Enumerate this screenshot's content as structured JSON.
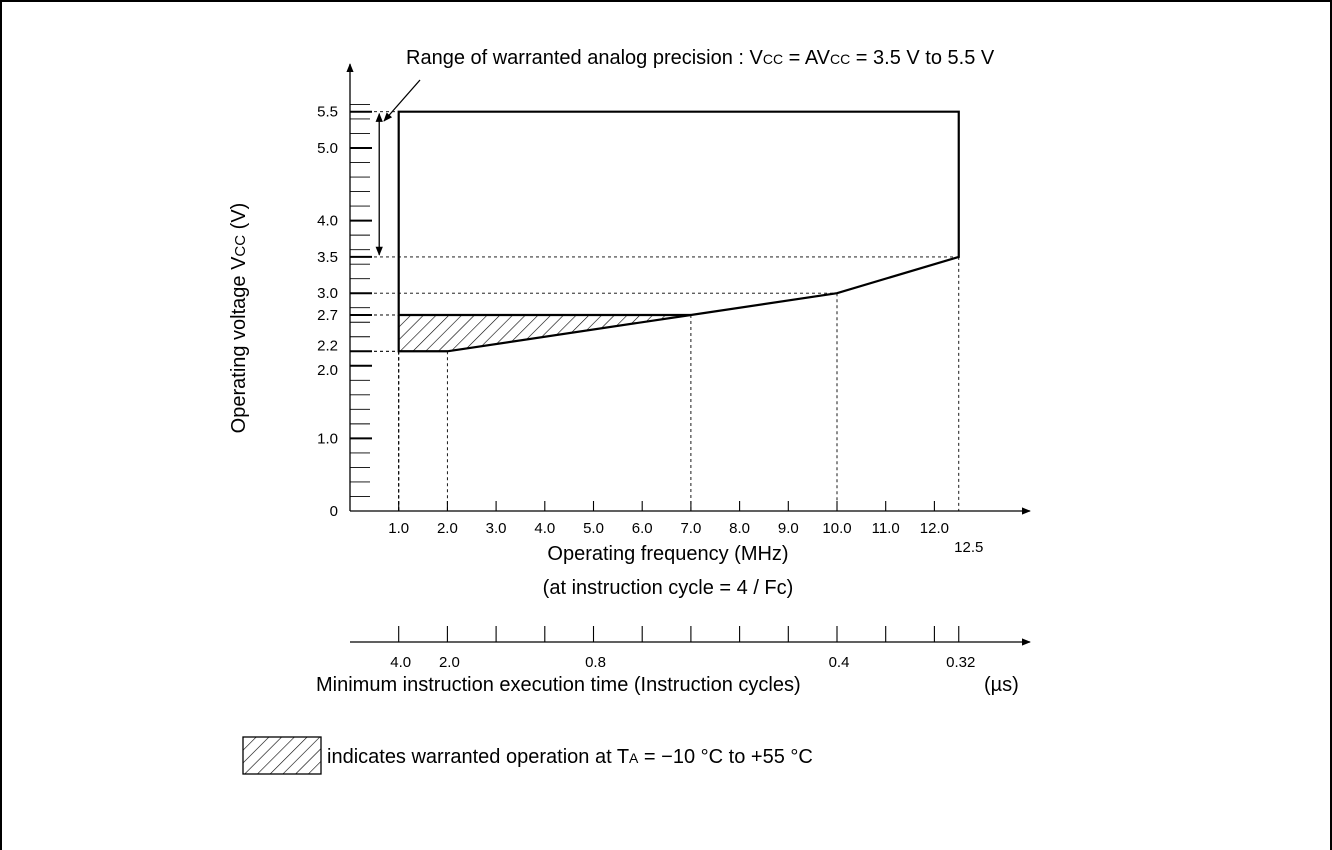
{
  "chart_data": {
    "type": "area",
    "annotation": {
      "prefix": "Range of warranted analog precision : V",
      "sub1": "CC",
      "mid": " = AV",
      "sub2": "CC",
      "suffix": " = 3.5 V to 5.5 V"
    },
    "ylabel": {
      "main": "Operating voltage V",
      "sub": "CC",
      "unit": " (V)"
    },
    "xlabel": {
      "line1": "Operating frequency (MHz)",
      "line2": "(at instruction cycle = 4 / Fc)"
    },
    "x2label": {
      "main": "Minimum instruction execution time (Instruction cycles)",
      "unit": "(µs)"
    },
    "legend": {
      "prefix": "indicates warranted operation at T",
      "sub": "A",
      "suffix": " = −10 °C to +55 °C"
    },
    "xlim": [
      0,
      14.5
    ],
    "ylim": [
      0,
      6.2
    ],
    "y_ticks": [
      {
        "value": 0,
        "label": "0"
      },
      {
        "value": 1.0,
        "label": "1.0"
      },
      {
        "value": 2.0,
        "label": "2.0"
      },
      {
        "value": 2.2,
        "label": "2.2"
      },
      {
        "value": 2.7,
        "label": "2.7"
      },
      {
        "value": 3.0,
        "label": "3.0"
      },
      {
        "value": 3.5,
        "label": "3.5"
      },
      {
        "value": 4.0,
        "label": "4.0"
      },
      {
        "value": 5.0,
        "label": "5.0"
      },
      {
        "value": 5.5,
        "label": "5.5"
      }
    ],
    "y_minor_step": 0.2,
    "x_ticks": [
      {
        "value": 1,
        "label": "1.0"
      },
      {
        "value": 2,
        "label": "2.0"
      },
      {
        "value": 3,
        "label": "3.0"
      },
      {
        "value": 4,
        "label": "4.0"
      },
      {
        "value": 5,
        "label": "5.0"
      },
      {
        "value": 6,
        "label": "6.0"
      },
      {
        "value": 7,
        "label": "7.0"
      },
      {
        "value": 8,
        "label": "8.0"
      },
      {
        "value": 9,
        "label": "9.0"
      },
      {
        "value": 10,
        "label": "10.0"
      },
      {
        "value": 11,
        "label": "11.0"
      },
      {
        "value": 12,
        "label": "12.0"
      },
      {
        "value": 12.5,
        "label": "12.5"
      }
    ],
    "x2_ticks": [
      {
        "freq": 1,
        "label": "4.0"
      },
      {
        "freq": 2,
        "label": "2.0"
      },
      {
        "freq": 3,
        "label": ""
      },
      {
        "freq": 4,
        "label": ""
      },
      {
        "freq": 5,
        "label": "0.8"
      },
      {
        "freq": 6,
        "label": ""
      },
      {
        "freq": 7,
        "label": ""
      },
      {
        "freq": 8,
        "label": ""
      },
      {
        "freq": 9,
        "label": ""
      },
      {
        "freq": 10,
        "label": "0.4"
      },
      {
        "freq": 11,
        "label": ""
      },
      {
        "freq": 12,
        "label": ""
      },
      {
        "freq": 12.5,
        "label": "0.32"
      }
    ],
    "operating_region": [
      {
        "x": 1.0,
        "y": 5.5
      },
      {
        "x": 12.5,
        "y": 5.5
      },
      {
        "x": 12.5,
        "y": 3.5
      },
      {
        "x": 10.0,
        "y": 3.0
      },
      {
        "x": 7.0,
        "y": 2.7
      },
      {
        "x": 1.0,
        "y": 2.7
      }
    ],
    "lower_boundary": [
      {
        "x": 1.0,
        "y": 2.7
      },
      {
        "x": 1.0,
        "y": 2.2
      },
      {
        "x": 2.0,
        "y": 2.2
      },
      {
        "x": 7.0,
        "y": 2.7
      }
    ],
    "hatched_region": [
      {
        "x": 1.0,
        "y": 2.7
      },
      {
        "x": 7.0,
        "y": 2.7
      },
      {
        "x": 2.0,
        "y": 2.2
      },
      {
        "x": 1.0,
        "y": 2.2
      }
    ],
    "reference_lines": [
      {
        "x": 1.0,
        "y": 2.2
      },
      {
        "x": 1.0,
        "y": 2.7
      },
      {
        "x": 2.0,
        "y": 2.2
      },
      {
        "x": 7.0,
        "y": 2.7
      },
      {
        "x": 10.0,
        "y": 3.0
      },
      {
        "x": 12.5,
        "y": 3.5
      },
      {
        "x": 1.0,
        "y": 5.5
      }
    ],
    "analog_range": [
      3.5,
      5.5
    ]
  }
}
